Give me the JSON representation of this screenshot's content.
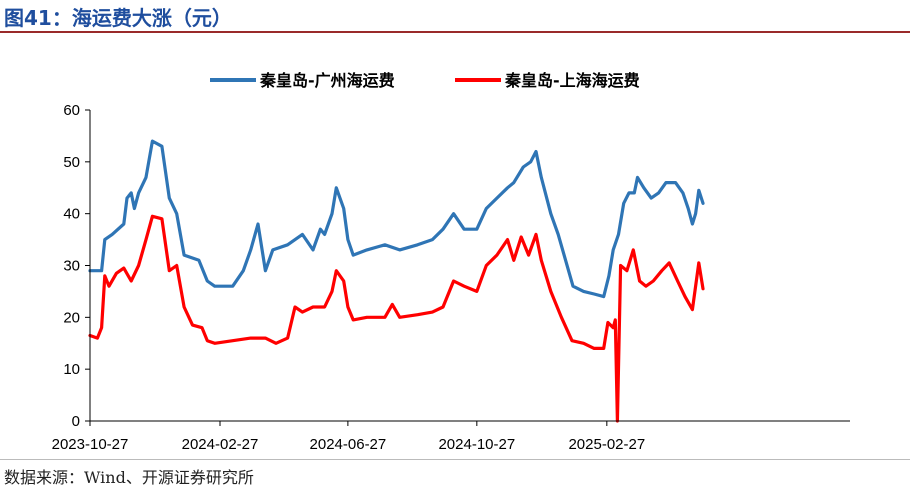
{
  "header": {
    "title": "图41：海运费大涨（元）"
  },
  "footer": {
    "source": "数据来源：Wind、开源证券研究所"
  },
  "chart_data": {
    "type": "line",
    "title": "",
    "xlabel": "",
    "ylabel": "",
    "ylim": [
      0,
      60
    ],
    "yticks": [
      0,
      10,
      20,
      30,
      40,
      50,
      60
    ],
    "xlim": [
      "2023-10-27",
      "2025-05-30"
    ],
    "xticks": [
      "2023-10-27",
      "2024-02-27",
      "2024-06-27",
      "2024-10-27",
      "2025-02-27"
    ],
    "grid": false,
    "legend_position": "top-center",
    "series": [
      {
        "name": "秦皇岛-广州海运费",
        "color": "#2f75b5",
        "points": [
          [
            "2023-10-27",
            29
          ],
          [
            "2023-11-07",
            29
          ],
          [
            "2023-11-10",
            35
          ],
          [
            "2023-11-17",
            36
          ],
          [
            "2023-11-28",
            38
          ],
          [
            "2023-12-01",
            43
          ],
          [
            "2023-12-05",
            44
          ],
          [
            "2023-12-08",
            41
          ],
          [
            "2023-12-12",
            44
          ],
          [
            "2023-12-19",
            47
          ],
          [
            "2023-12-25",
            54
          ],
          [
            "2024-01-03",
            53
          ],
          [
            "2024-01-10",
            43
          ],
          [
            "2024-01-17",
            40
          ],
          [
            "2024-01-24",
            32
          ],
          [
            "2024-02-07",
            31
          ],
          [
            "2024-02-15",
            27
          ],
          [
            "2024-02-22",
            26
          ],
          [
            "2024-03-10",
            26
          ],
          [
            "2024-03-20",
            29
          ],
          [
            "2024-03-27",
            33
          ],
          [
            "2024-04-03",
            38
          ],
          [
            "2024-04-10",
            29
          ],
          [
            "2024-04-17",
            33
          ],
          [
            "2024-05-01",
            34
          ],
          [
            "2024-05-15",
            36
          ],
          [
            "2024-05-25",
            33
          ],
          [
            "2024-06-01",
            37
          ],
          [
            "2024-06-05",
            36
          ],
          [
            "2024-06-12",
            40
          ],
          [
            "2024-06-16",
            45
          ],
          [
            "2024-06-23",
            41
          ],
          [
            "2024-06-27",
            35
          ],
          [
            "2024-07-02",
            32
          ],
          [
            "2024-07-15",
            33
          ],
          [
            "2024-08-01",
            34
          ],
          [
            "2024-08-15",
            33
          ],
          [
            "2024-09-01",
            34
          ],
          [
            "2024-09-15",
            35
          ],
          [
            "2024-09-25",
            37
          ],
          [
            "2024-10-05",
            40
          ],
          [
            "2024-10-15",
            37
          ],
          [
            "2024-10-27",
            37
          ],
          [
            "2024-11-05",
            41
          ],
          [
            "2024-11-15",
            43
          ],
          [
            "2024-11-25",
            45
          ],
          [
            "2024-12-01",
            46
          ],
          [
            "2024-12-10",
            49
          ],
          [
            "2024-12-17",
            50
          ],
          [
            "2024-12-22",
            52
          ],
          [
            "2024-12-27",
            47
          ],
          [
            "2025-01-05",
            40
          ],
          [
            "2025-01-12",
            36
          ],
          [
            "2025-01-19",
            31
          ],
          [
            "2025-01-26",
            26
          ],
          [
            "2025-02-05",
            25
          ],
          [
            "2025-02-15",
            24.5
          ],
          [
            "2025-02-24",
            24
          ],
          [
            "2025-03-01",
            28
          ],
          [
            "2025-03-05",
            33
          ],
          [
            "2025-03-10",
            36
          ],
          [
            "2025-03-15",
            42
          ],
          [
            "2025-03-20",
            44
          ],
          [
            "2025-03-25",
            44
          ],
          [
            "2025-03-28",
            47
          ],
          [
            "2025-04-03",
            45
          ],
          [
            "2025-04-10",
            43
          ],
          [
            "2025-04-17",
            44
          ],
          [
            "2025-04-24",
            46
          ],
          [
            "2025-05-03",
            46
          ],
          [
            "2025-05-10",
            44
          ],
          [
            "2025-05-15",
            41
          ],
          [
            "2025-05-19",
            38
          ],
          [
            "2025-05-22",
            40
          ],
          [
            "2025-05-25",
            44.5
          ],
          [
            "2025-05-29",
            42
          ]
        ]
      },
      {
        "name": "秦皇岛-上海海运费",
        "color": "#ff0000",
        "points": [
          [
            "2023-10-27",
            16.5
          ],
          [
            "2023-11-03",
            16
          ],
          [
            "2023-11-07",
            18
          ],
          [
            "2023-11-10",
            28
          ],
          [
            "2023-11-14",
            26
          ],
          [
            "2023-11-21",
            28.5
          ],
          [
            "2023-11-28",
            29.5
          ],
          [
            "2023-12-05",
            27
          ],
          [
            "2023-12-12",
            30
          ],
          [
            "2023-12-19",
            35
          ],
          [
            "2023-12-25",
            39.5
          ],
          [
            "2024-01-03",
            39
          ],
          [
            "2024-01-10",
            29
          ],
          [
            "2024-01-17",
            30
          ],
          [
            "2024-01-24",
            22
          ],
          [
            "2024-02-01",
            18.5
          ],
          [
            "2024-02-10",
            18
          ],
          [
            "2024-02-15",
            15.5
          ],
          [
            "2024-02-22",
            15
          ],
          [
            "2024-03-10",
            15.5
          ],
          [
            "2024-03-27",
            16
          ],
          [
            "2024-04-10",
            16
          ],
          [
            "2024-04-20",
            15
          ],
          [
            "2024-05-01",
            16
          ],
          [
            "2024-05-08",
            22
          ],
          [
            "2024-05-15",
            21
          ],
          [
            "2024-05-25",
            22
          ],
          [
            "2024-06-05",
            22
          ],
          [
            "2024-06-12",
            25
          ],
          [
            "2024-06-16",
            29
          ],
          [
            "2024-06-23",
            27
          ],
          [
            "2024-06-27",
            22
          ],
          [
            "2024-07-02",
            19.5
          ],
          [
            "2024-07-15",
            20
          ],
          [
            "2024-08-01",
            20
          ],
          [
            "2024-08-08",
            22.5
          ],
          [
            "2024-08-15",
            20
          ],
          [
            "2024-09-01",
            20.5
          ],
          [
            "2024-09-15",
            21
          ],
          [
            "2024-09-25",
            22
          ],
          [
            "2024-10-05",
            27
          ],
          [
            "2024-10-15",
            26
          ],
          [
            "2024-10-27",
            25
          ],
          [
            "2024-11-05",
            30
          ],
          [
            "2024-11-15",
            32
          ],
          [
            "2024-11-25",
            35
          ],
          [
            "2024-12-01",
            31
          ],
          [
            "2024-12-08",
            35.5
          ],
          [
            "2024-12-15",
            32
          ],
          [
            "2024-12-22",
            36
          ],
          [
            "2024-12-27",
            31
          ],
          [
            "2025-01-05",
            25
          ],
          [
            "2025-01-15",
            20
          ],
          [
            "2025-01-25",
            15.5
          ],
          [
            "2025-02-05",
            15
          ],
          [
            "2025-02-15",
            14
          ],
          [
            "2025-02-24",
            14
          ],
          [
            "2025-02-28",
            19
          ],
          [
            "2025-03-05",
            18
          ],
          [
            "2025-03-07",
            19.5
          ],
          [
            "2025-03-09",
            0
          ],
          [
            "2025-03-12",
            30
          ],
          [
            "2025-03-18",
            29
          ],
          [
            "2025-03-24",
            33
          ],
          [
            "2025-03-30",
            27
          ],
          [
            "2025-04-05",
            26
          ],
          [
            "2025-04-12",
            27
          ],
          [
            "2025-04-20",
            29
          ],
          [
            "2025-04-27",
            30.5
          ],
          [
            "2025-05-05",
            27
          ],
          [
            "2025-05-12",
            24
          ],
          [
            "2025-05-19",
            21.5
          ],
          [
            "2025-05-25",
            30.5
          ],
          [
            "2025-05-29",
            25.5
          ]
        ]
      }
    ]
  }
}
